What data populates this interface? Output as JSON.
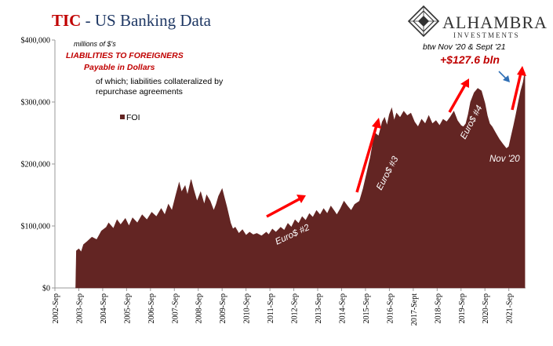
{
  "header": {
    "title_tic": "TIC",
    "title_rest": " - US Banking Data"
  },
  "logo": {
    "name": "ALHAMBRA",
    "sub": "INVESTMENTS"
  },
  "annotations": {
    "units": "millions of $'s",
    "liabilities": "LIABILITIES TO FOREIGNERS",
    "payable": "Payable in Dollars",
    "of_which_1": "of which; liabilities collateralized by",
    "of_which_2": "repurchase agreements",
    "period": "btw Nov '20 & Sept '21",
    "change": "+$127.6 bln",
    "nov20": "Nov '20",
    "euro2": "Euro$ #2",
    "euro3": "Euro$ #3",
    "euro4": "Euro$ #4"
  },
  "colors": {
    "area": "#632523",
    "arrow": "#ff0000",
    "blue_arrow": "#2f6fb5"
  },
  "chart_data": {
    "type": "area",
    "series": [
      {
        "name": "FOI",
        "points": [
          [
            2003.62,
            0
          ],
          [
            2003.65,
            60000
          ],
          [
            2003.75,
            63000
          ],
          [
            2003.85,
            58000
          ],
          [
            2003.95,
            70000
          ],
          [
            2004.1,
            75000
          ],
          [
            2004.3,
            82000
          ],
          [
            2004.5,
            78000
          ],
          [
            2004.7,
            92000
          ],
          [
            2004.9,
            98000
          ],
          [
            2005.0,
            105000
          ],
          [
            2005.2,
            96000
          ],
          [
            2005.35,
            110000
          ],
          [
            2005.5,
            102000
          ],
          [
            2005.7,
            112000
          ],
          [
            2005.85,
            100000
          ],
          [
            2006.0,
            113000
          ],
          [
            2006.2,
            105000
          ],
          [
            2006.4,
            118000
          ],
          [
            2006.6,
            110000
          ],
          [
            2006.8,
            122000
          ],
          [
            2007.0,
            115000
          ],
          [
            2007.2,
            128000
          ],
          [
            2007.35,
            118000
          ],
          [
            2007.5,
            135000
          ],
          [
            2007.65,
            125000
          ],
          [
            2007.8,
            148000
          ],
          [
            2007.95,
            170000
          ],
          [
            2008.05,
            155000
          ],
          [
            2008.2,
            165000
          ],
          [
            2008.3,
            150000
          ],
          [
            2008.45,
            175000
          ],
          [
            2008.55,
            160000
          ],
          [
            2008.7,
            140000
          ],
          [
            2008.85,
            155000
          ],
          [
            2009.0,
            135000
          ],
          [
            2009.1,
            150000
          ],
          [
            2009.25,
            140000
          ],
          [
            2009.4,
            125000
          ],
          [
            2009.5,
            135000
          ],
          [
            2009.6,
            148000
          ],
          [
            2009.75,
            160000
          ],
          [
            2009.85,
            145000
          ],
          [
            2009.95,
            130000
          ],
          [
            2010.1,
            105000
          ],
          [
            2010.2,
            95000
          ],
          [
            2010.3,
            98000
          ],
          [
            2010.45,
            88000
          ],
          [
            2010.6,
            94000
          ],
          [
            2010.75,
            85000
          ],
          [
            2010.9,
            90000
          ],
          [
            2011.05,
            86000
          ],
          [
            2011.2,
            88000
          ],
          [
            2011.4,
            84000
          ],
          [
            2011.6,
            90000
          ],
          [
            2011.7,
            86000
          ],
          [
            2011.85,
            95000
          ],
          [
            2012.0,
            90000
          ],
          [
            2012.2,
            98000
          ],
          [
            2012.35,
            93000
          ],
          [
            2012.5,
            104000
          ],
          [
            2012.65,
            98000
          ],
          [
            2012.8,
            110000
          ],
          [
            2012.95,
            104000
          ],
          [
            2013.1,
            115000
          ],
          [
            2013.25,
            109000
          ],
          [
            2013.4,
            120000
          ],
          [
            2013.55,
            114000
          ],
          [
            2013.7,
            125000
          ],
          [
            2013.85,
            118000
          ],
          [
            2014.0,
            128000
          ],
          [
            2014.15,
            120000
          ],
          [
            2014.3,
            132000
          ],
          [
            2014.45,
            124000
          ],
          [
            2014.55,
            118000
          ],
          [
            2014.7,
            128000
          ],
          [
            2014.85,
            140000
          ],
          [
            2015.0,
            132000
          ],
          [
            2015.15,
            125000
          ],
          [
            2015.3,
            135000
          ],
          [
            2015.5,
            140000
          ],
          [
            2015.65,
            160000
          ],
          [
            2015.8,
            185000
          ],
          [
            2015.95,
            210000
          ],
          [
            2016.05,
            232000
          ],
          [
            2016.15,
            250000
          ],
          [
            2016.3,
            245000
          ],
          [
            2016.45,
            268000
          ],
          [
            2016.55,
            275000
          ],
          [
            2016.65,
            262000
          ],
          [
            2016.75,
            280000
          ],
          [
            2016.85,
            290000
          ],
          [
            2016.95,
            270000
          ],
          [
            2017.05,
            282000
          ],
          [
            2017.2,
            275000
          ],
          [
            2017.35,
            285000
          ],
          [
            2017.5,
            278000
          ],
          [
            2017.65,
            282000
          ],
          [
            2017.8,
            268000
          ],
          [
            2017.95,
            260000
          ],
          [
            2018.1,
            272000
          ],
          [
            2018.25,
            265000
          ],
          [
            2018.4,
            278000
          ],
          [
            2018.55,
            265000
          ],
          [
            2018.7,
            270000
          ],
          [
            2018.85,
            262000
          ],
          [
            2019.0,
            272000
          ],
          [
            2019.15,
            268000
          ],
          [
            2019.3,
            276000
          ],
          [
            2019.45,
            285000
          ],
          [
            2019.6,
            270000
          ],
          [
            2019.75,
            262000
          ],
          [
            2019.85,
            260000
          ],
          [
            2019.95,
            265000
          ],
          [
            2020.05,
            280000
          ],
          [
            2020.15,
            300000
          ],
          [
            2020.3,
            315000
          ],
          [
            2020.45,
            322000
          ],
          [
            2020.6,
            318000
          ],
          [
            2020.75,
            298000
          ],
          [
            2020.85,
            278000
          ],
          [
            2020.95,
            265000
          ],
          [
            2021.05,
            260000
          ],
          [
            2021.2,
            250000
          ],
          [
            2021.35,
            240000
          ],
          [
            2021.5,
            232000
          ],
          [
            2021.65,
            225000
          ],
          [
            2021.75,
            228000
          ],
          [
            2021.85,
            245000
          ],
          [
            2021.95,
            262000
          ],
          [
            2022.05,
            280000
          ],
          [
            2022.15,
            300000
          ],
          [
            2022.25,
            318000
          ],
          [
            2022.35,
            332000
          ],
          [
            2022.42,
            348000
          ]
        ]
      }
    ],
    "xlim": [
      2002.75,
      2022.45
    ],
    "ylim": [
      0,
      400000
    ],
    "yticks": [
      0,
      100000,
      200000,
      300000,
      400000
    ],
    "ytick_labels": [
      "$0",
      "$100,000",
      "$200,000",
      "$300,000",
      "$400,000"
    ],
    "xticks": [
      2002.75,
      2003.75,
      2004.75,
      2005.75,
      2006.75,
      2007.75,
      2008.75,
      2009.75,
      2010.75,
      2011.75,
      2012.75,
      2013.75,
      2014.75,
      2015.75,
      2016.75,
      2017.75,
      2018.75,
      2019.75,
      2020.75,
      2021.75
    ],
    "xtick_labels": [
      "2002-Sep",
      "2003-Sep",
      "2004-Sep",
      "2005-Sep",
      "2006-Sep",
      "2007-Sep",
      "2008-Sep",
      "2009-Sep",
      "2010-Sep",
      "2011-Sep",
      "2012-Sep",
      "2013-Sep",
      "2014-Sep",
      "2015-Sep",
      "2016-Sep",
      "2017-Sept",
      "2018-Sep",
      "2019-Sep",
      "2020-Sep",
      "2021-Sep"
    ],
    "legend": {
      "label": "FOI",
      "placement": "top-left"
    },
    "grid": false
  }
}
